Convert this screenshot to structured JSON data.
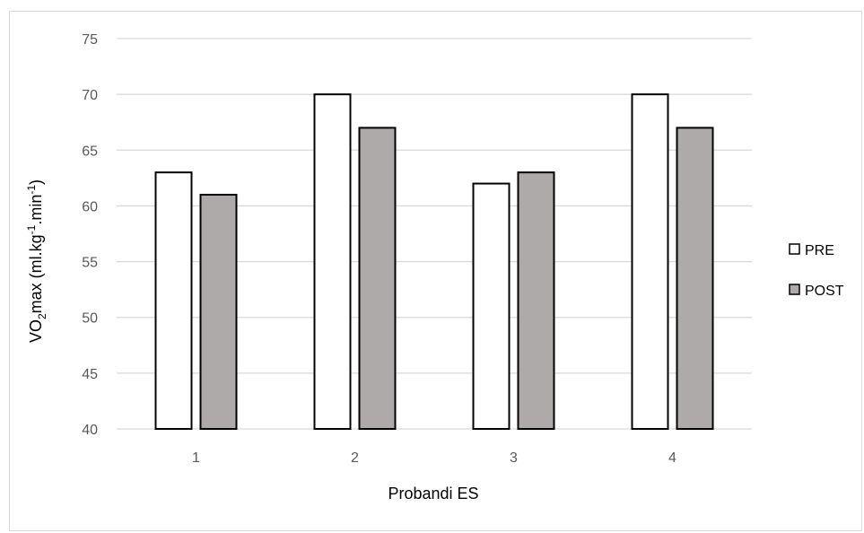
{
  "chart_data": {
    "type": "bar",
    "categories": [
      "1",
      "2",
      "3",
      "4"
    ],
    "series": [
      {
        "name": "PRE",
        "values": [
          63,
          70,
          62,
          70
        ],
        "color": "#ffffff"
      },
      {
        "name": "POST",
        "values": [
          61,
          67,
          63,
          67
        ],
        "color": "#aeaaaa"
      }
    ],
    "xlabel": "Probandi ES",
    "ylabel": {
      "base": "VO",
      "sub": "2",
      "middle": "max (ml.kg",
      "sup1": "-1",
      "middle2": ".min",
      "sup2": "-1",
      "end": ")"
    },
    "ylim": [
      40,
      75
    ],
    "yticks": [
      40,
      45,
      50,
      55,
      60,
      65,
      70,
      75
    ],
    "grid": true,
    "legend_position": "right",
    "bar_edge_color": "#000000",
    "grid_color": "#d9d9d9"
  }
}
